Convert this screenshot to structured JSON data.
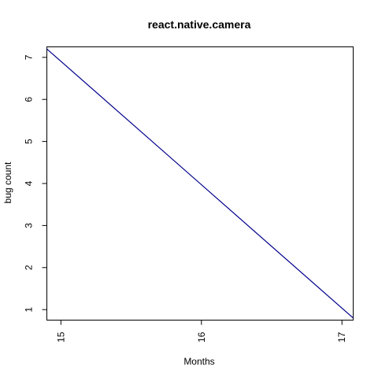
{
  "chart_data": {
    "type": "line",
    "title": "react.native.camera",
    "xlabel": "Months",
    "ylabel": "bug count",
    "xlim": [
      14.9,
      17.08
    ],
    "ylim": [
      0.75,
      7.25
    ],
    "x_ticks": [
      15,
      16,
      17
    ],
    "y_ticks": [
      1,
      2,
      3,
      4,
      5,
      6,
      7
    ],
    "grid": false,
    "series": [
      {
        "color": "#00008B",
        "x": [
          14.9,
          17.08
        ],
        "y": [
          7.2,
          0.8
        ]
      }
    ]
  }
}
